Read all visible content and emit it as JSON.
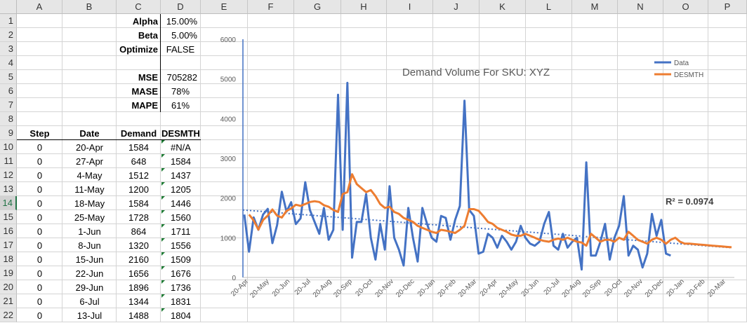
{
  "columns": [
    "A",
    "B",
    "C",
    "D",
    "E",
    "F",
    "G",
    "H",
    "I",
    "J",
    "K",
    "L",
    "M",
    "N",
    "O",
    "P"
  ],
  "rows": [
    "1",
    "2",
    "3",
    "4",
    "5",
    "6",
    "7",
    "8",
    "9",
    "10",
    "11",
    "12",
    "13",
    "14",
    "15",
    "16",
    "17",
    "18",
    "19",
    "20",
    "21",
    "22"
  ],
  "params": [
    {
      "label": "Alpha",
      "value": "15.00%"
    },
    {
      "label": "Beta",
      "value": "5.00%"
    },
    {
      "label": "Optimize",
      "value": "FALSE"
    },
    {
      "label": "MSE",
      "value": "705282"
    },
    {
      "label": "MASE",
      "value": "78%"
    },
    {
      "label": "MAPE",
      "value": "61%"
    }
  ],
  "table": {
    "headers": [
      "Step",
      "Date",
      "Demand",
      "DESMTH"
    ],
    "rows": [
      [
        "0",
        "20-Apr",
        "1584",
        "#N/A"
      ],
      [
        "0",
        "27-Apr",
        "648",
        "1584"
      ],
      [
        "0",
        "4-May",
        "1512",
        "1437"
      ],
      [
        "0",
        "11-May",
        "1200",
        "1205"
      ],
      [
        "0",
        "18-May",
        "1584",
        "1446"
      ],
      [
        "0",
        "25-May",
        "1728",
        "1560"
      ],
      [
        "0",
        "1-Jun",
        "864",
        "1711"
      ],
      [
        "0",
        "8-Jun",
        "1320",
        "1556"
      ],
      [
        "0",
        "15-Jun",
        "2160",
        "1509"
      ],
      [
        "0",
        "22-Jun",
        "1656",
        "1676"
      ],
      [
        "0",
        "29-Jun",
        "1896",
        "1736"
      ],
      [
        "0",
        "6-Jul",
        "1344",
        "1831"
      ],
      [
        "0",
        "13-Jul",
        "1488",
        "1804"
      ]
    ]
  },
  "chart_data": {
    "type": "line",
    "title": "Demand Volume For SKU: XYZ",
    "ylim": [
      0,
      6000
    ],
    "yticks": [
      "0",
      "1000",
      "2000",
      "3000",
      "4000",
      "5000",
      "6000"
    ],
    "xticks": [
      "20-Apr",
      "20-May",
      "20-Jun",
      "20-Jul",
      "20-Aug",
      "20-Sep",
      "20-Oct",
      "20-Nov",
      "20-Dec",
      "20-Jan",
      "20-Feb",
      "20-Mar",
      "20-Apr",
      "20-May",
      "20-Jun",
      "20-Jul",
      "20-Aug",
      "20-Sep",
      "20-Oct",
      "20-Nov",
      "20-Dec",
      "20-Jan",
      "20-Feb",
      "20-Mar"
    ],
    "legend_position": "top-right",
    "annotation": "R² = 0.0974",
    "trendline": {
      "start": 1700,
      "end": 750,
      "color": "#4472c4"
    },
    "series": [
      {
        "name": "Data",
        "color": "#4472c4",
        "values": [
          1584,
          648,
          1512,
          1200,
          1584,
          1728,
          864,
          1320,
          2160,
          1656,
          1896,
          1344,
          1488,
          2400,
          1700,
          1400,
          1100,
          1750,
          950,
          1200,
          4600,
          1200,
          4900,
          500,
          1400,
          1400,
          2100,
          1000,
          450,
          1350,
          700,
          2300,
          1000,
          700,
          300,
          1750,
          1000,
          400,
          1750,
          1350,
          1000,
          900,
          1550,
          1500,
          950,
          1450,
          1800,
          4450,
          1700,
          1550,
          600,
          650,
          1100,
          1000,
          750,
          1050,
          900,
          700,
          900,
          1300,
          1000,
          850,
          800,
          900,
          1350,
          1650,
          800,
          700,
          1100,
          750,
          900,
          1000,
          200,
          2900,
          550,
          550,
          900,
          1350,
          450,
          1000,
          1300,
          2050,
          550,
          800,
          700,
          250,
          600,
          1600,
          1050,
          1450,
          600,
          550
        ]
      },
      {
        "name": "DESMTH",
        "color": "#ed7d31",
        "values": [
          null,
          1584,
          1437,
          1205,
          1446,
          1560,
          1711,
          1556,
          1509,
          1676,
          1736,
          1831,
          1804,
          1850,
          1900,
          1920,
          1900,
          1820,
          1780,
          1700,
          1650,
          2100,
          2150,
          2600,
          2350,
          2250,
          2150,
          2200,
          2050,
          1850,
          1750,
          1780,
          1650,
          1600,
          1500,
          1450,
          1400,
          1300,
          1250,
          1200,
          1150,
          1120,
          1200,
          1180,
          1150,
          1120,
          1200,
          1300,
          1720,
          1720,
          1680,
          1550,
          1400,
          1350,
          1250,
          1200,
          1150,
          1080,
          1050,
          1050,
          1100,
          1050,
          1000,
          950,
          920,
          900,
          950,
          980,
          950,
          1000,
          950,
          900,
          880,
          800,
          1100,
          1000,
          900,
          950,
          950,
          900,
          1000,
          950,
          1150,
          1050,
          950,
          900,
          850,
          950,
          1000,
          950,
          850,
          950,
          1000,
          900,
          850,
          850,
          840,
          830,
          820,
          810,
          800,
          790,
          780,
          770,
          760
        ]
      }
    ]
  }
}
